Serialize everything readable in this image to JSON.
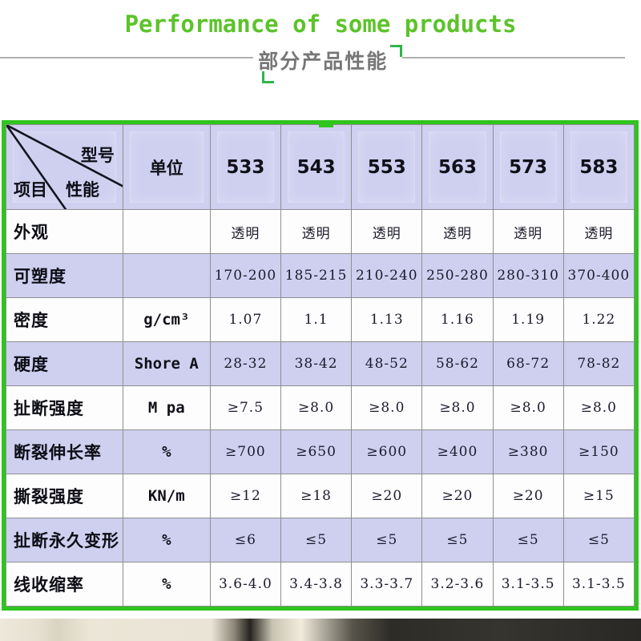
{
  "header": {
    "title": "Performance of some products",
    "subtitle": "部分产品性能"
  },
  "colors": {
    "accent_green": "#2fc41e",
    "title_green": "#5cc32a",
    "lavender_cell": "#cfcff0",
    "grid_line": "#8f8f8f",
    "subtitle_gray": "#767676"
  },
  "table": {
    "corner": {
      "top_right": "型号",
      "middle": "性能",
      "bottom_left": "项目"
    },
    "unit_header": "单位",
    "models": [
      "533",
      "543",
      "553",
      "563",
      "573",
      "583"
    ],
    "rows": [
      {
        "label": "外观",
        "unit": "",
        "values": [
          "透明",
          "透明",
          "透明",
          "透明",
          "透明",
          "透明"
        ],
        "shaded": false
      },
      {
        "label": "可塑度",
        "unit": "",
        "values": [
          "170-200",
          "185-215",
          "210-240",
          "250-280",
          "280-310",
          "370-400"
        ],
        "shaded": true
      },
      {
        "label": "密度",
        "unit": "g/cm³",
        "values": [
          "1.07",
          "1.1",
          "1.13",
          "1.16",
          "1.19",
          "1.22"
        ],
        "shaded": false
      },
      {
        "label": "硬度",
        "unit": "Shore A",
        "values": [
          "28-32",
          "38-42",
          "48-52",
          "58-62",
          "68-72",
          "78-82"
        ],
        "shaded": true
      },
      {
        "label": "扯断强度",
        "unit": "M pa",
        "values": [
          "≥7.5",
          "≥8.0",
          "≥8.0",
          "≥8.0",
          "≥8.0",
          "≥8.0"
        ],
        "shaded": false
      },
      {
        "label": "断裂伸长率",
        "unit": "%",
        "values": [
          "≥700",
          "≥650",
          "≥600",
          "≥400",
          "≥380",
          "≥150"
        ],
        "shaded": true
      },
      {
        "label": "撕裂强度",
        "unit": "KN/m",
        "values": [
          "≥12",
          "≥18",
          "≥20",
          "≥20",
          "≥20",
          "≥15"
        ],
        "shaded": false
      },
      {
        "label": "扯断永久变形",
        "unit": "%",
        "values": [
          "≤6",
          "≤5",
          "≤5",
          "≤5",
          "≤5",
          "≤5"
        ],
        "shaded": true
      },
      {
        "label": "线收缩率",
        "unit": "%",
        "values": [
          "3.6-4.0",
          "3.4-3.8",
          "3.3-3.7",
          "3.2-3.6",
          "3.1-3.5",
          "3.1-3.5"
        ],
        "shaded": false
      }
    ]
  }
}
